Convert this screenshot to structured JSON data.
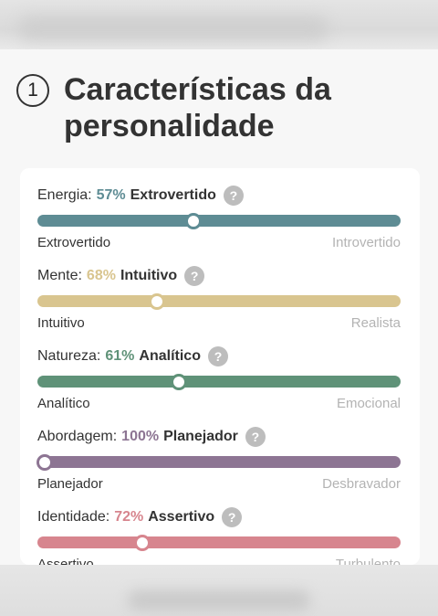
{
  "section": {
    "number": "1",
    "title": "Características da personalidade"
  },
  "traits": [
    {
      "label": "Energia:",
      "percent": "57%",
      "side": "Extrovertido",
      "left": "Extrovertido",
      "right": "Introvertido",
      "position": 0.43,
      "color": "#5e8c94"
    },
    {
      "label": "Mente:",
      "percent": "68%",
      "side": "Intuitivo",
      "left": "Intuitivo",
      "right": "Realista",
      "position": 0.33,
      "color": "#d9c58f"
    },
    {
      "label": "Natureza:",
      "percent": "61%",
      "side": "Analítico",
      "left": "Analítico",
      "right": "Emocional",
      "position": 0.39,
      "color": "#5f9278"
    },
    {
      "label": "Abordagem:",
      "percent": "100%",
      "side": "Planejador",
      "left": "Planejador",
      "right": "Desbravador",
      "position": 0.02,
      "color": "#8d7593"
    },
    {
      "label": "Identidade:",
      "percent": "72%",
      "side": "Assertivo",
      "left": "Assertivo",
      "right": "Turbulento",
      "position": 0.29,
      "color": "#d7858e"
    }
  ],
  "help_icon": "?",
  "icons": {
    "help": "question-circle-icon"
  }
}
